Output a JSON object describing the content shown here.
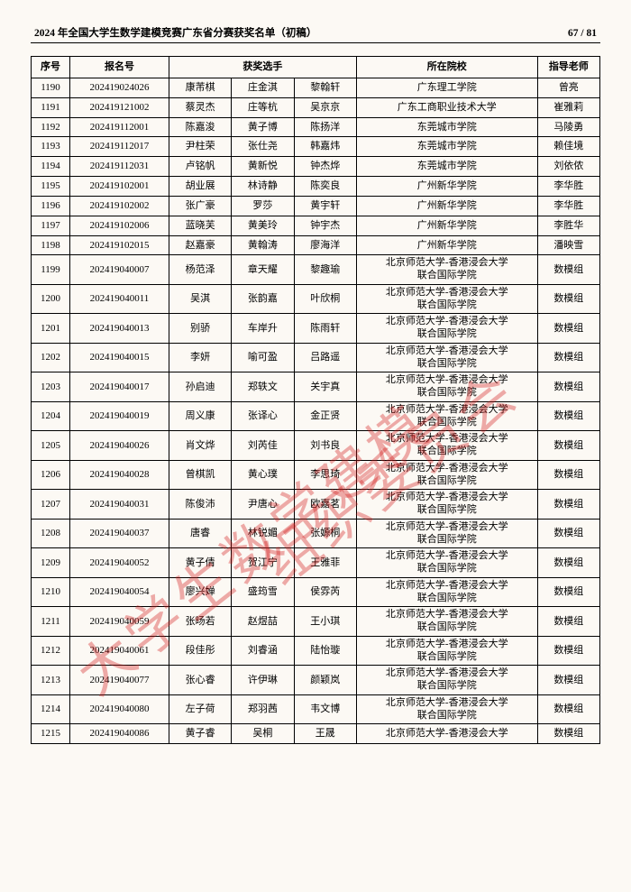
{
  "header": {
    "title": "2024 年全国大学生数学建模竞赛广东省分赛获奖名单（初稿）",
    "page_current": "67",
    "page_sep": " / ",
    "page_total": "81"
  },
  "watermark": {
    "line1": "大学生数学建模",
    "line2": "组织委员会"
  },
  "columns": {
    "seq": "序号",
    "reg": "报名号",
    "participants": "获奖选手",
    "school": "所在院校",
    "advisor": "指导老师"
  },
  "rows": [
    {
      "seq": "1190",
      "reg": "202419024026",
      "p1": "康芾棋",
      "p2": "庄金淇",
      "p3": "黎翰轩",
      "school": "广东理工学院",
      "adv": "曾亮",
      "tall": false
    },
    {
      "seq": "1191",
      "reg": "202419121002",
      "p1": "蔡灵杰",
      "p2": "庄等杭",
      "p3": "吴京京",
      "school": "广东工商职业技术大学",
      "adv": "崔雅莉",
      "tall": false
    },
    {
      "seq": "1192",
      "reg": "202419112001",
      "p1": "陈嘉浚",
      "p2": "黄子博",
      "p3": "陈扬洋",
      "school": "东莞城市学院",
      "adv": "马陵勇",
      "tall": false
    },
    {
      "seq": "1193",
      "reg": "202419112017",
      "p1": "尹柱荣",
      "p2": "张仕尧",
      "p3": "韩嘉炜",
      "school": "东莞城市学院",
      "adv": "赖佳境",
      "tall": false
    },
    {
      "seq": "1194",
      "reg": "202419112031",
      "p1": "卢铭帆",
      "p2": "黄新悦",
      "p3": "钟杰烨",
      "school": "东莞城市学院",
      "adv": "刘依侬",
      "tall": false
    },
    {
      "seq": "1195",
      "reg": "202419102001",
      "p1": "胡业展",
      "p2": "林诗静",
      "p3": "陈奕良",
      "school": "广州新华学院",
      "adv": "李华胜",
      "tall": false
    },
    {
      "seq": "1196",
      "reg": "202419102002",
      "p1": "张广豪",
      "p2": "罗莎",
      "p3": "黄宇轩",
      "school": "广州新华学院",
      "adv": "李华胜",
      "tall": false
    },
    {
      "seq": "1197",
      "reg": "202419102006",
      "p1": "蓝晓芙",
      "p2": "黄美玲",
      "p3": "钟宇杰",
      "school": "广州新华学院",
      "adv": "李胜华",
      "tall": false
    },
    {
      "seq": "1198",
      "reg": "202419102015",
      "p1": "赵嘉豪",
      "p2": "黄翰涛",
      "p3": "廖海洋",
      "school": "广州新华学院",
      "adv": "潘映雪",
      "tall": false
    },
    {
      "seq": "1199",
      "reg": "202419040007",
      "p1": "杨范泽",
      "p2": "章天耀",
      "p3": "黎趣瑜",
      "school": "北京师范大学-香港浸会大学\n联合国际学院",
      "adv": "数模组",
      "tall": true
    },
    {
      "seq": "1200",
      "reg": "202419040011",
      "p1": "吴淇",
      "p2": "张韵嘉",
      "p3": "叶欣桐",
      "school": "北京师范大学-香港浸会大学\n联合国际学院",
      "adv": "数模组",
      "tall": true
    },
    {
      "seq": "1201",
      "reg": "202419040013",
      "p1": "别骄",
      "p2": "车岸升",
      "p3": "陈雨轩",
      "school": "北京师范大学-香港浸会大学\n联合国际学院",
      "adv": "数模组",
      "tall": true
    },
    {
      "seq": "1202",
      "reg": "202419040015",
      "p1": "李妍",
      "p2": "喻可盈",
      "p3": "吕路遥",
      "school": "北京师范大学-香港浸会大学\n联合国际学院",
      "adv": "数模组",
      "tall": true
    },
    {
      "seq": "1203",
      "reg": "202419040017",
      "p1": "孙启迪",
      "p2": "郑轶文",
      "p3": "关宇真",
      "school": "北京师范大学-香港浸会大学\n联合国际学院",
      "adv": "数模组",
      "tall": true
    },
    {
      "seq": "1204",
      "reg": "202419040019",
      "p1": "周义康",
      "p2": "张译心",
      "p3": "金正贤",
      "school": "北京师范大学-香港浸会大学\n联合国际学院",
      "adv": "数模组",
      "tall": true
    },
    {
      "seq": "1205",
      "reg": "202419040026",
      "p1": "肖文烨",
      "p2": "刘芮佳",
      "p3": "刘书良",
      "school": "北京师范大学-香港浸会大学\n联合国际学院",
      "adv": "数模组",
      "tall": true
    },
    {
      "seq": "1206",
      "reg": "202419040028",
      "p1": "曾棋凯",
      "p2": "黄心璞",
      "p3": "李思琦",
      "school": "北京师范大学-香港浸会大学\n联合国际学院",
      "adv": "数模组",
      "tall": true
    },
    {
      "seq": "1207",
      "reg": "202419040031",
      "p1": "陈俊沛",
      "p2": "尹唐心",
      "p3": "欧嘉茗",
      "school": "北京师范大学-香港浸会大学\n联合国际学院",
      "adv": "数模组",
      "tall": true
    },
    {
      "seq": "1208",
      "reg": "202419040037",
      "p1": "唐睿",
      "p2": "林锐媚",
      "p3": "张嫄桐",
      "school": "北京师范大学-香港浸会大学\n联合国际学院",
      "adv": "数模组",
      "tall": true
    },
    {
      "seq": "1209",
      "reg": "202419040052",
      "p1": "黄子倩",
      "p2": "贺江宁",
      "p3": "王雅菲",
      "school": "北京师范大学-香港浸会大学\n联合国际学院",
      "adv": "数模组",
      "tall": true
    },
    {
      "seq": "1210",
      "reg": "202419040054",
      "p1": "廖兴婵",
      "p2": "盛筠雪",
      "p3": "侯雰芮",
      "school": "北京师范大学-香港浸会大学\n联合国际学院",
      "adv": "数模组",
      "tall": true
    },
    {
      "seq": "1211",
      "reg": "202419040059",
      "p1": "张旸若",
      "p2": "赵煜喆",
      "p3": "王小琪",
      "school": "北京师范大学-香港浸会大学\n联合国际学院",
      "adv": "数模组",
      "tall": true
    },
    {
      "seq": "1212",
      "reg": "202419040061",
      "p1": "段佳彤",
      "p2": "刘睿涵",
      "p3": "陆怡璇",
      "school": "北京师范大学-香港浸会大学\n联合国际学院",
      "adv": "数模组",
      "tall": true
    },
    {
      "seq": "1213",
      "reg": "202419040077",
      "p1": "张心睿",
      "p2": "许伊琳",
      "p3": "颜颖岚",
      "school": "北京师范大学-香港浸会大学\n联合国际学院",
      "adv": "数模组",
      "tall": true
    },
    {
      "seq": "1214",
      "reg": "202419040080",
      "p1": "左子荷",
      "p2": "郑羽茜",
      "p3": "韦文博",
      "school": "北京师范大学-香港浸会大学\n联合国际学院",
      "adv": "数模组",
      "tall": true
    },
    {
      "seq": "1215",
      "reg": "202419040086",
      "p1": "黄子睿",
      "p2": "吴桐",
      "p3": "王晟",
      "school": "北京师范大学-香港浸会大学",
      "adv": "数模组",
      "tall": false
    }
  ]
}
